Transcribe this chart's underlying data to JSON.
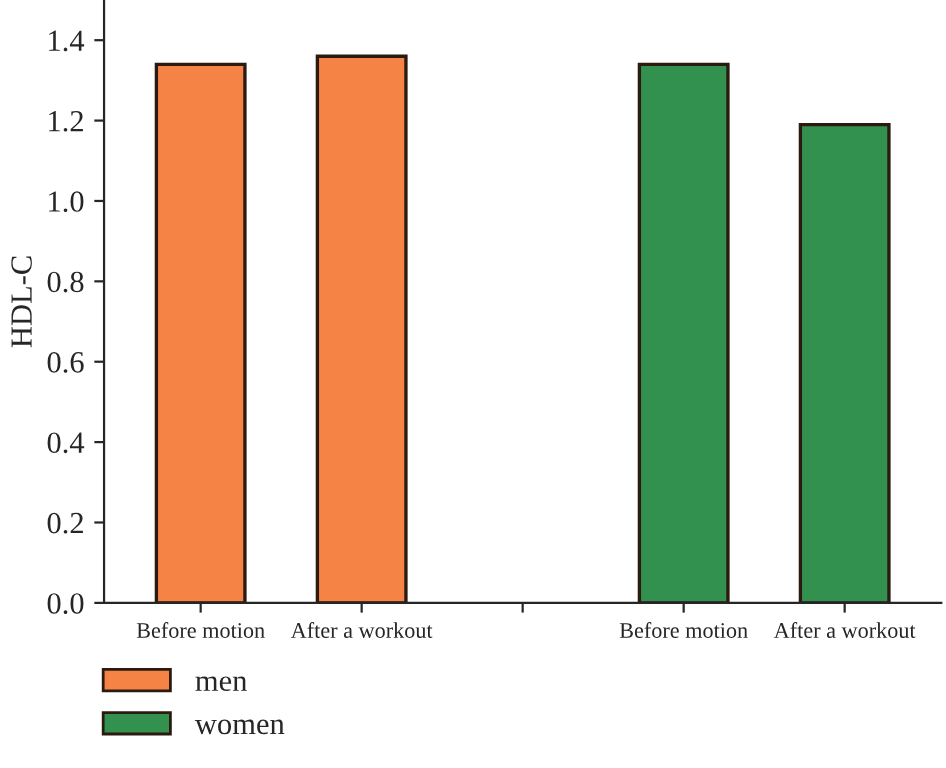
{
  "chart_data": {
    "type": "bar",
    "ylabel": "HDL-C",
    "categories": [
      "Before motion",
      "After a workout",
      null,
      "Before motion",
      "After a workout"
    ],
    "series": [
      {
        "name": "men",
        "color": "#f58345",
        "values": [
          1.34,
          1.36,
          null,
          null,
          null
        ]
      },
      {
        "name": "women",
        "color": "#339150",
        "values": [
          null,
          null,
          null,
          1.34,
          1.19
        ]
      }
    ],
    "ylim": [
      0,
      1.5
    ],
    "yticks": [
      {
        "value": 0,
        "label": "0.0"
      },
      0.2,
      0.4,
      0.6,
      0.8,
      {
        "value": 1,
        "label": "1.0"
      },
      1.2,
      1.4
    ],
    "grid": false,
    "legend": "bottom left"
  }
}
